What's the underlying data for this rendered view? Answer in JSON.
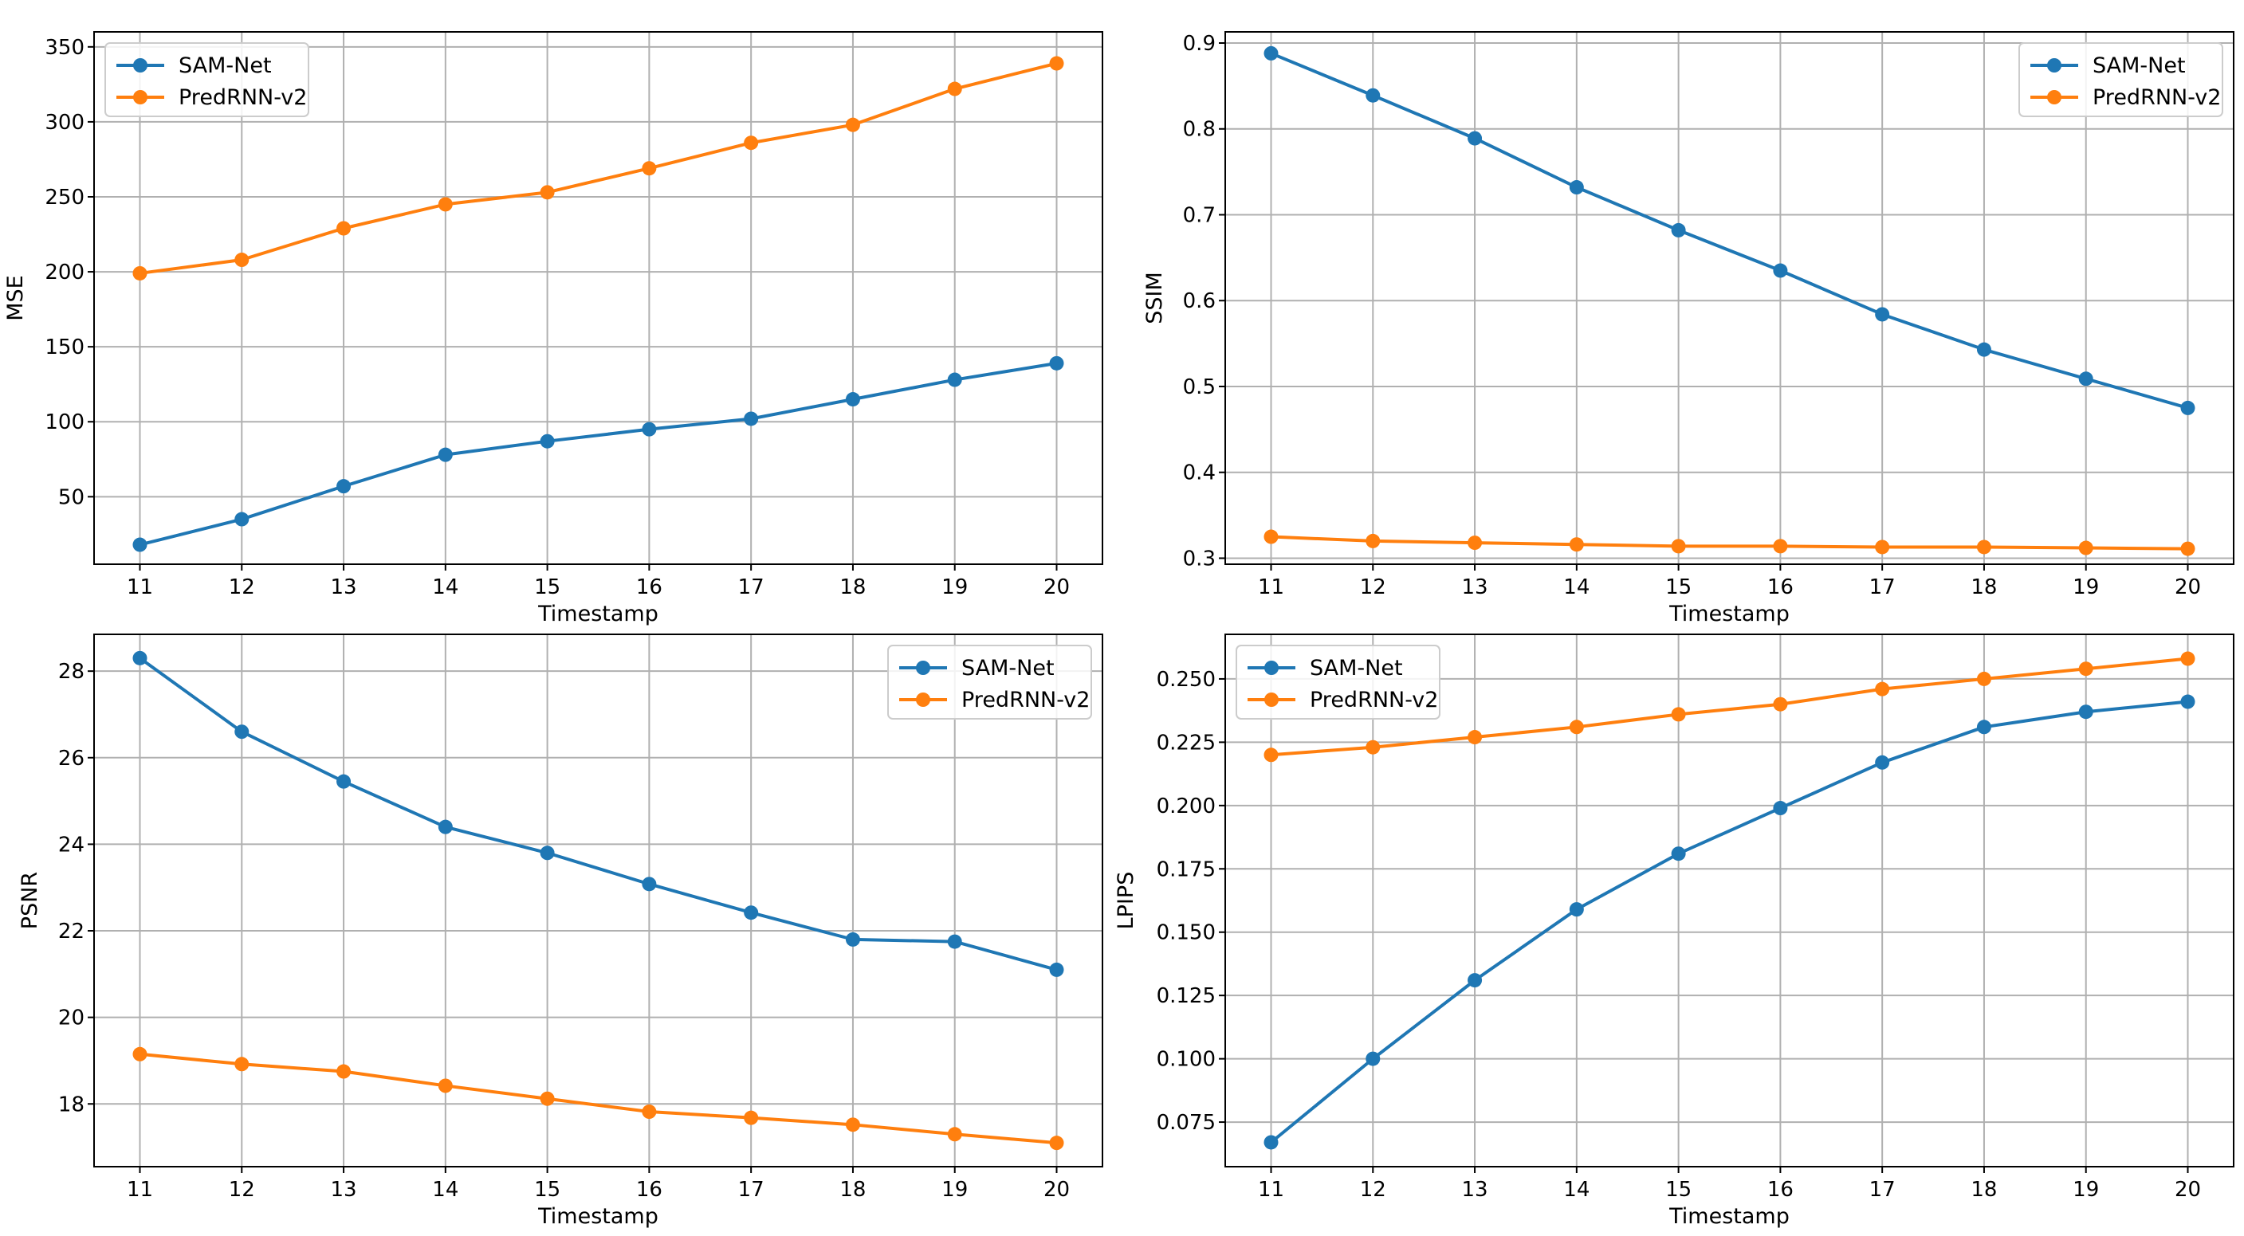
{
  "colors": {
    "sam_net": "#1f77b4",
    "predrnn_v2": "#ff7f0e",
    "grid": "#b0b0b0",
    "axis": "#000000"
  },
  "chart_data": [
    {
      "type": "line",
      "title": "",
      "xlabel": "Timestamp",
      "ylabel": "MSE",
      "x": [
        11,
        12,
        13,
        14,
        15,
        16,
        17,
        18,
        19,
        20
      ],
      "xlim": [
        10.55,
        20.45
      ],
      "ylim": [
        5,
        360
      ],
      "yticks": [
        50,
        100,
        150,
        200,
        250,
        300,
        350
      ],
      "ytick_labels": [
        "50",
        "100",
        "150",
        "200",
        "250",
        "300",
        "350"
      ],
      "grid": true,
      "legend_position": "upper left",
      "series": [
        {
          "name": "SAM-Net",
          "color_key": "sam_net",
          "values": [
            18,
            35,
            57,
            78,
            87,
            95,
            102,
            115,
            128,
            139
          ]
        },
        {
          "name": "PredRNN-v2",
          "color_key": "predrnn_v2",
          "values": [
            199,
            208,
            229,
            245,
            253,
            269,
            286,
            298,
            322,
            339
          ]
        }
      ]
    },
    {
      "type": "line",
      "title": "",
      "xlabel": "Timestamp",
      "ylabel": "SSIM",
      "x": [
        11,
        12,
        13,
        14,
        15,
        16,
        17,
        18,
        19,
        20
      ],
      "xlim": [
        10.55,
        20.45
      ],
      "ylim": [
        0.293,
        0.913
      ],
      "yticks": [
        0.3,
        0.4,
        0.5,
        0.6,
        0.7,
        0.8,
        0.9
      ],
      "ytick_labels": [
        "0.3",
        "0.4",
        "0.5",
        "0.6",
        "0.7",
        "0.8",
        "0.9"
      ],
      "grid": true,
      "legend_position": "upper right",
      "series": [
        {
          "name": "SAM-Net",
          "color_key": "sam_net",
          "values": [
            0.888,
            0.839,
            0.789,
            0.732,
            0.682,
            0.635,
            0.584,
            0.543,
            0.509,
            0.475
          ]
        },
        {
          "name": "PredRNN-v2",
          "color_key": "predrnn_v2",
          "values": [
            0.325,
            0.32,
            0.318,
            0.316,
            0.314,
            0.314,
            0.313,
            0.313,
            0.312,
            0.311
          ]
        }
      ]
    },
    {
      "type": "line",
      "title": "",
      "xlabel": "Timestamp",
      "ylabel": "PSNR",
      "x": [
        11,
        12,
        13,
        14,
        15,
        16,
        17,
        18,
        19,
        20
      ],
      "xlim": [
        10.55,
        20.45
      ],
      "ylim": [
        16.55,
        28.85
      ],
      "yticks": [
        18,
        20,
        22,
        24,
        26,
        28
      ],
      "ytick_labels": [
        "18",
        "20",
        "22",
        "24",
        "26",
        "28"
      ],
      "grid": true,
      "legend_position": "upper right",
      "series": [
        {
          "name": "SAM-Net",
          "color_key": "sam_net",
          "values": [
            28.3,
            26.6,
            25.45,
            24.4,
            23.8,
            23.08,
            22.42,
            21.8,
            21.75,
            21.1
          ]
        },
        {
          "name": "PredRNN-v2",
          "color_key": "predrnn_v2",
          "values": [
            19.15,
            18.92,
            18.75,
            18.42,
            18.12,
            17.82,
            17.68,
            17.52,
            17.3,
            17.1
          ]
        }
      ]
    },
    {
      "type": "line",
      "title": "",
      "xlabel": "Timestamp",
      "ylabel": "LPIPS",
      "x": [
        11,
        12,
        13,
        14,
        15,
        16,
        17,
        18,
        19,
        20
      ],
      "xlim": [
        10.55,
        20.45
      ],
      "ylim": [
        0.0574,
        0.2676
      ],
      "yticks": [
        0.075,
        0.1,
        0.125,
        0.15,
        0.175,
        0.2,
        0.225,
        0.25
      ],
      "ytick_labels": [
        "0.075",
        "0.100",
        "0.125",
        "0.150",
        "0.175",
        "0.200",
        "0.225",
        "0.250"
      ],
      "grid": true,
      "legend_position": "upper left",
      "series": [
        {
          "name": "SAM-Net",
          "color_key": "sam_net",
          "values": [
            0.067,
            0.1,
            0.131,
            0.159,
            0.181,
            0.199,
            0.217,
            0.231,
            0.237,
            0.241
          ]
        },
        {
          "name": "PredRNN-v2",
          "color_key": "predrnn_v2",
          "values": [
            0.22,
            0.223,
            0.227,
            0.231,
            0.236,
            0.24,
            0.246,
            0.25,
            0.254,
            0.258
          ]
        }
      ]
    }
  ]
}
